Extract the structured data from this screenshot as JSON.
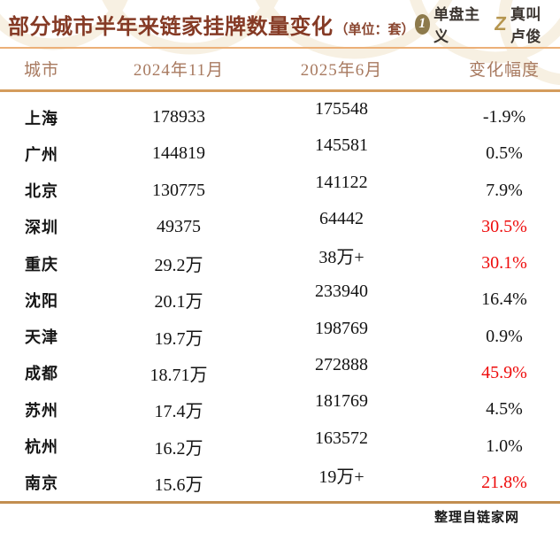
{
  "header": {
    "title": "部分城市半年来链家挂牌数量变化",
    "unit": "（单位：套）",
    "logos": [
      {
        "icon": "1",
        "label": "单盘主义"
      },
      {
        "icon": "Z",
        "label": "真叫卢俊"
      }
    ]
  },
  "table": {
    "columns": [
      "城市",
      "2024年11月",
      "2025年6月",
      "变化幅度"
    ],
    "rows": [
      {
        "city": "上海",
        "nov_2024": "178933",
        "jun_2025": "175548",
        "change": "-1.9%",
        "highlight": false
      },
      {
        "city": "广州",
        "nov_2024": "144819",
        "jun_2025": "145581",
        "change": "0.5%",
        "highlight": false
      },
      {
        "city": "北京",
        "nov_2024": "130775",
        "jun_2025": "141122",
        "change": "7.9%",
        "highlight": false
      },
      {
        "city": "深圳",
        "nov_2024": "49375",
        "jun_2025": "64442",
        "change": "30.5%",
        "highlight": true
      },
      {
        "city": "重庆",
        "nov_2024": "29.2万",
        "jun_2025": "38万+",
        "change": "30.1%",
        "highlight": true
      },
      {
        "city": "沈阳",
        "nov_2024": "20.1万",
        "jun_2025": "233940",
        "change": "16.4%",
        "highlight": false
      },
      {
        "city": "天津",
        "nov_2024": "19.7万",
        "jun_2025": "198769",
        "change": "0.9%",
        "highlight": false
      },
      {
        "city": "成都",
        "nov_2024": "18.71万",
        "jun_2025": "272888",
        "change": "45.9%",
        "highlight": true
      },
      {
        "city": "苏州",
        "nov_2024": "17.4万",
        "jun_2025": "181769",
        "change": "4.5%",
        "highlight": false
      },
      {
        "city": "杭州",
        "nov_2024": "16.2万",
        "jun_2025": "163572",
        "change": "1.0%",
        "highlight": false
      },
      {
        "city": "南京",
        "nov_2024": "15.6万",
        "jun_2025": "19万+",
        "change": "21.8%",
        "highlight": true
      }
    ]
  },
  "footer": {
    "source": "整理自链家网"
  },
  "colors": {
    "title_text": "#853a25",
    "header_text": "#a87a60",
    "rule_gold": "#d49c5c",
    "accent_red": "#ee0b0b",
    "logo_bronze": "#8d7a4c",
    "logo_gold": "#b5954e"
  }
}
